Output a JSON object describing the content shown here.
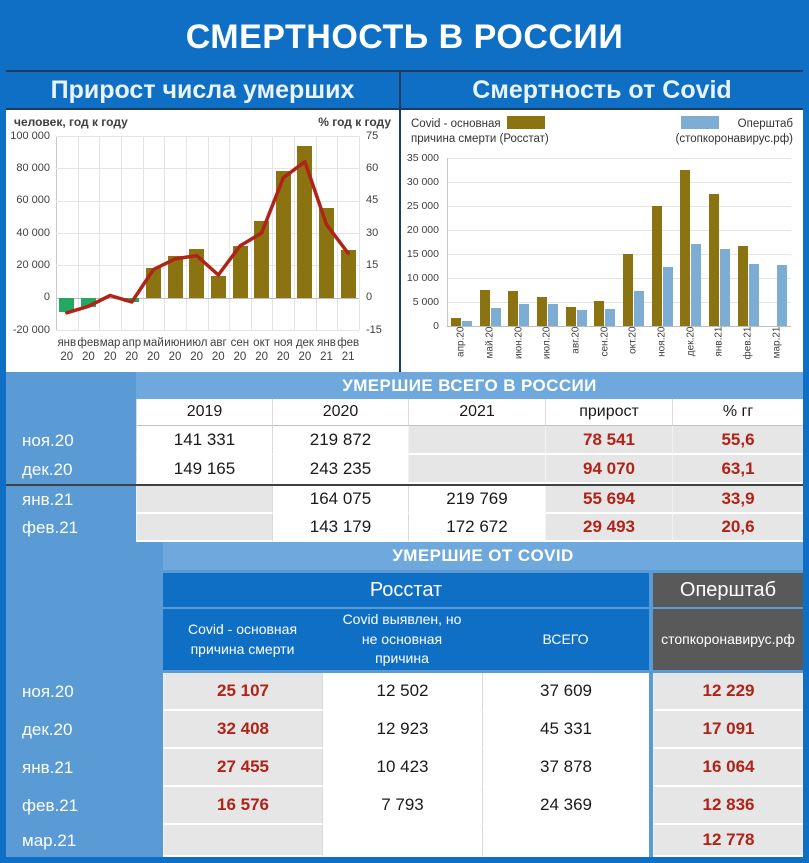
{
  "title": "СМЕРТНОСТЬ В РОССИИ",
  "colors": {
    "frame_blue": "#0e6fc5",
    "panel_blue": "#5b9bd5",
    "header_blue": "#6fa8dc",
    "dark_gray": "#595959",
    "cell_gray": "#e7e6e6",
    "red_text": "#b02318",
    "bar_brown": "#8b7311",
    "bar_green": "#22a863",
    "bar_blue": "#7eadd4",
    "line_red": "#b02418"
  },
  "charts": {
    "left": {
      "title": "Прирост числа умерших",
      "y_left_label": "человек, год к году",
      "y_right_label": "% год к году"
    },
    "right": {
      "title": "Смертность от Covid",
      "legend": [
        {
          "line1": "Covid - основная",
          "line2": "причина смерти (Росстат)",
          "color": "#8b7311",
          "swatch_pos": "right"
        },
        {
          "line1": "Оперштаб",
          "line2": "(стопкоронавирус.рф)",
          "color": "#7eadd4",
          "swatch_pos": "left"
        }
      ]
    }
  },
  "chart_data": [
    {
      "id": "left",
      "type": "bar+line",
      "title": "Прирост числа умерших",
      "categories": [
        "янв 20",
        "фев 20",
        "мар 20",
        "апр 20",
        "май 20",
        "июн 20",
        "июл 20",
        "авг 20",
        "сен 20",
        "окт 20",
        "ноя 20",
        "дек 20",
        "янв 21",
        "фев 21"
      ],
      "series": [
        {
          "name": "прирост числа умерших, человек год к году",
          "type": "bar",
          "axis": "left",
          "values": [
            -9000,
            -5500,
            0,
            -2500,
            18500,
            25500,
            30000,
            13500,
            32000,
            47500,
            78541,
            94070,
            55694,
            29493
          ],
          "color_positive": "#8b7311",
          "color_negative": "#22a863"
        },
        {
          "name": "% год к году",
          "type": "line",
          "axis": "right",
          "values": [
            -7,
            -4,
            1,
            -2,
            13,
            18,
            19.5,
            10.5,
            24,
            30,
            55.6,
            63.1,
            33.9,
            20.6
          ],
          "color": "#b02418"
        }
      ],
      "ylim_left": [
        -20000,
        100000
      ],
      "ylim_right": [
        -15,
        75
      ],
      "yticks_left": [
        "100 000",
        "80 000",
        "60 000",
        "40 000",
        "20 000",
        "0",
        "-20 000"
      ],
      "yticks_right": [
        "75",
        "60",
        "45",
        "30",
        "15",
        "0",
        "-15"
      ],
      "grid": true,
      "legend_position": "none"
    },
    {
      "id": "right",
      "type": "bar",
      "title": "Смертность от Covid",
      "categories": [
        "апр.20",
        "май.20",
        "июн.20",
        "июл.20",
        "авг.20",
        "сен.20",
        "окт.20",
        "ноя.20",
        "дек.20",
        "янв.21",
        "фев.21",
        "мар.21"
      ],
      "series": [
        {
          "name": "Covid - основная причина смерти (Росстат)",
          "color": "#8b7311",
          "values": [
            1700,
            7600,
            7300,
            6000,
            3900,
            5300,
            15100,
            25107,
            32408,
            27455,
            16576,
            null
          ]
        },
        {
          "name": "Оперштаб (стопкоронавирус.рф)",
          "color": "#7eadd4",
          "values": [
            1100,
            3700,
            4600,
            4500,
            3300,
            3500,
            7400,
            12229,
            17091,
            16064,
            12836,
            12778
          ]
        }
      ],
      "ylim": [
        0,
        35000
      ],
      "yticks": [
        "35 000",
        "30 000",
        "25 000",
        "20 000",
        "15 000",
        "10 000",
        "5 000",
        "0"
      ],
      "grid": true,
      "legend_position": "top"
    }
  ],
  "tables": {
    "total": {
      "title": "УМЕРШИЕ ВСЕГО В РОССИИ",
      "columns": [
        "2019",
        "2020",
        "2021",
        "прирост",
        "% гг"
      ],
      "rows": [
        {
          "label": "ноя.20",
          "cells": [
            "141 331",
            "219 872",
            "",
            "78 541",
            "55,6"
          ]
        },
        {
          "label": "дек.20",
          "cells": [
            "149 165",
            "243 235",
            "",
            "94 070",
            "63,1"
          ],
          "divider_after": true
        },
        {
          "label": "янв.21",
          "cells": [
            "",
            "164 075",
            "219 769",
            "55 694",
            "33,9"
          ]
        },
        {
          "label": "фев.21",
          "cells": [
            "",
            "143 179",
            "172 672",
            "29 493",
            "20,6"
          ]
        }
      ]
    },
    "covid": {
      "title": "УМЕРШИЕ ОТ COVID",
      "groups": [
        {
          "label": "Росстат",
          "span": 3
        },
        {
          "label": "Оперштаб",
          "span": 1
        }
      ],
      "columns": [
        "Covid - основная причина смерти",
        "Covid выявлен, но не основная причина",
        "ВСЕГО",
        "стопкоронавирус.рф"
      ],
      "rows": [
        {
          "label": "ноя.20",
          "cells": [
            "25 107",
            "12 502",
            "37 609",
            "12 229"
          ]
        },
        {
          "label": "дек.20",
          "cells": [
            "32 408",
            "12 923",
            "45 331",
            "17 091"
          ]
        },
        {
          "label": "янв.21",
          "cells": [
            "27 455",
            "10 423",
            "37 878",
            "16 064"
          ]
        },
        {
          "label": "фев.21",
          "cells": [
            "16 576",
            "7 793",
            "24 369",
            "12 836"
          ]
        },
        {
          "label": "мар.21",
          "cells": [
            "",
            "",
            "",
            "12 778"
          ]
        }
      ]
    }
  }
}
